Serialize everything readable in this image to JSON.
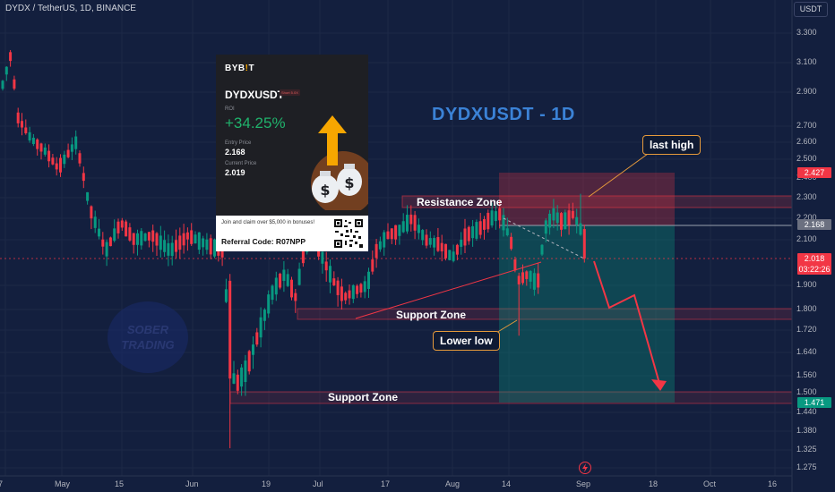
{
  "header": {
    "title": "DYDX / TetherUS, 1D, BINANCE",
    "currency": "USDT"
  },
  "chart_data": {
    "type": "candlestick",
    "title": "DYDXUSDT - 1D",
    "symbol": "DYDX / TetherUS",
    "interval": "1D",
    "exchange": "BINANCE",
    "price_axis": [
      "3.300",
      "3.100",
      "2.900",
      "2.700",
      "2.600",
      "2.500",
      "2.400",
      "2.300",
      "2.200",
      "2.100",
      "1.900",
      "1.800",
      "1.720",
      "1.640",
      "1.560",
      "1.500",
      "1.440",
      "1.380",
      "1.325",
      "1.275"
    ],
    "time_axis": [
      "7",
      "May",
      "15",
      "Jun",
      "19",
      "Jul",
      "17",
      "Aug",
      "14",
      "Sep",
      "18",
      "Oct",
      "16"
    ],
    "price_tags": [
      {
        "value": "2.427",
        "color": "#f23645"
      },
      {
        "value": "2.168",
        "color": "#6b7080"
      },
      {
        "value": "2.018",
        "sub": "03:22:26",
        "color": "#f23645"
      },
      {
        "value": "1.471",
        "color": "#089981"
      }
    ],
    "annotations": [
      "Resistance Zone",
      "Support Zone",
      "Support Zone",
      "last high",
      "Lower low"
    ],
    "colors": {
      "up": "#089981",
      "down": "#f23645",
      "background": "#131f3e",
      "callout_border": "#e69a3b",
      "title": "#3b82d6"
    }
  },
  "labels": {
    "big_title": "DYDXUSDT - 1D",
    "resistance": "Resistance Zone",
    "support_mid": "Support Zone",
    "support_low": "Support Zone",
    "last_high": "last high",
    "lower_low": "Lower low",
    "watermark_1": "SOBER",
    "watermark_2": "TRADING"
  },
  "card": {
    "brand": "BYB",
    "brand_bar": "!",
    "brand_end": "T",
    "symbol": "DYDXUSDT",
    "tag": "Short 5.0X",
    "roi_label": "ROI",
    "roi": "+34.25%",
    "entry_label": "Entry Price",
    "entry": "2.168",
    "current_label": "Current Price",
    "current": "2.019",
    "promo": "Join and claim over $5,000 in bonuses!",
    "referral": "Referral Code: R07NPP"
  },
  "icons": {
    "flash": "flash-icon",
    "money_bag": "money-bag-icon",
    "arrow_up": "arrow-up-icon",
    "qr": "qr-code-icon"
  }
}
